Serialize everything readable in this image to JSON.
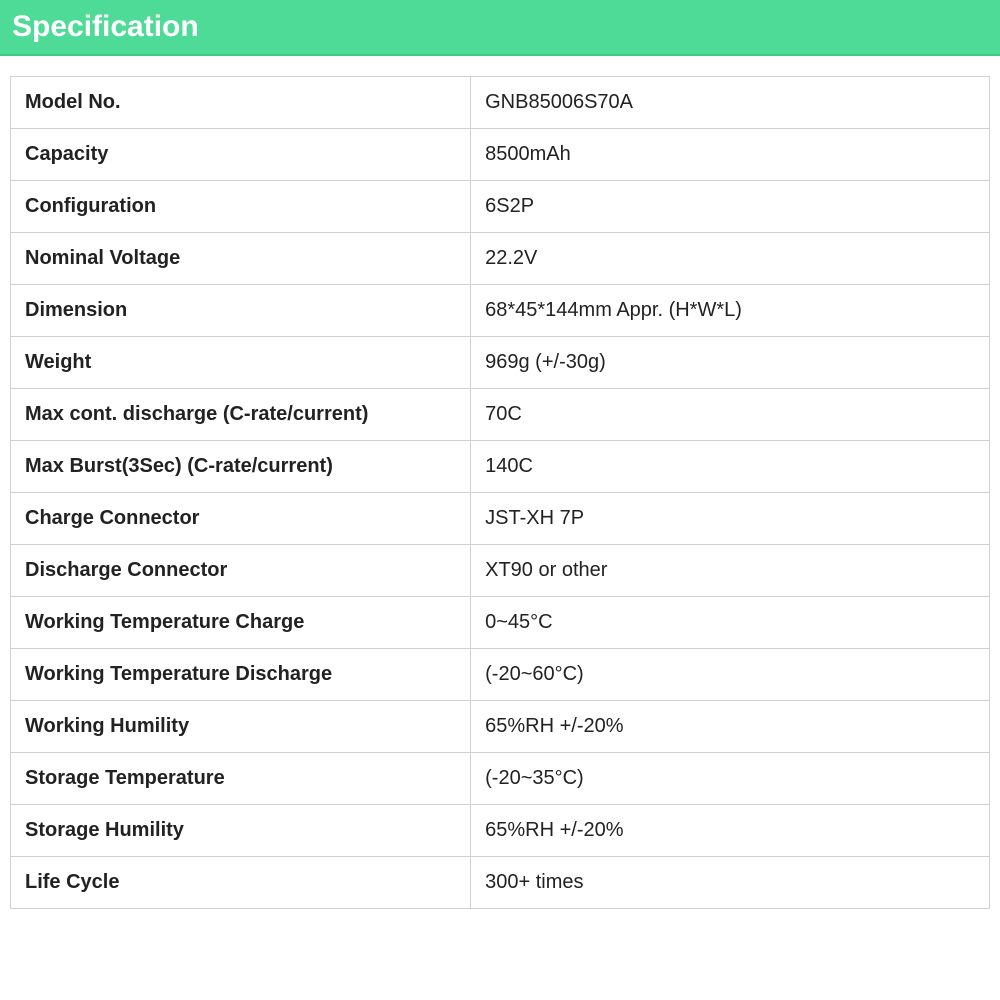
{
  "header": {
    "title": "Specification"
  },
  "table": {
    "type": "table",
    "columns": [
      "label",
      "value"
    ],
    "column_widths": [
      "47%",
      "53%"
    ],
    "border_color": "#d0d0d0",
    "header_bg": "#4edb97",
    "header_text_color": "#ffffff",
    "header_fontsize": 30,
    "cell_fontsize": 20,
    "label_fontweight": "bold",
    "value_fontweight": "normal",
    "text_color": "#222222",
    "rows": [
      {
        "label": "Model No.",
        "value": "GNB85006S70A"
      },
      {
        "label": "Capacity",
        "value": "8500mAh"
      },
      {
        "label": "Configuration",
        "value": "6S2P"
      },
      {
        "label": "Nominal Voltage",
        "value": "22.2V"
      },
      {
        "label": "Dimension",
        "value": "68*45*144mm Appr. (H*W*L)"
      },
      {
        "label": "Weight",
        "value": "969g (+/-30g)"
      },
      {
        "label": "Max cont. discharge (C-rate/current)",
        "value": "70C"
      },
      {
        "label": "Max Burst(3Sec) (C-rate/current)",
        "value": "140C"
      },
      {
        "label": "Charge Connector",
        "value": "JST-XH 7P"
      },
      {
        "label": "Discharge Connector",
        "value": "XT90 or other"
      },
      {
        "label": "Working Temperature Charge",
        "value": "0~45°C"
      },
      {
        "label": "Working Temperature Discharge",
        "value": "(-20~60°C)"
      },
      {
        "label": "Working Humility",
        "value": "65%RH +/-20%"
      },
      {
        "label": "Storage Temperature",
        "value": "(-20~35°C)"
      },
      {
        "label": "Storage Humility",
        "value": "65%RH +/-20%"
      },
      {
        "label": "Life Cycle",
        "value": "300+ times"
      }
    ]
  }
}
